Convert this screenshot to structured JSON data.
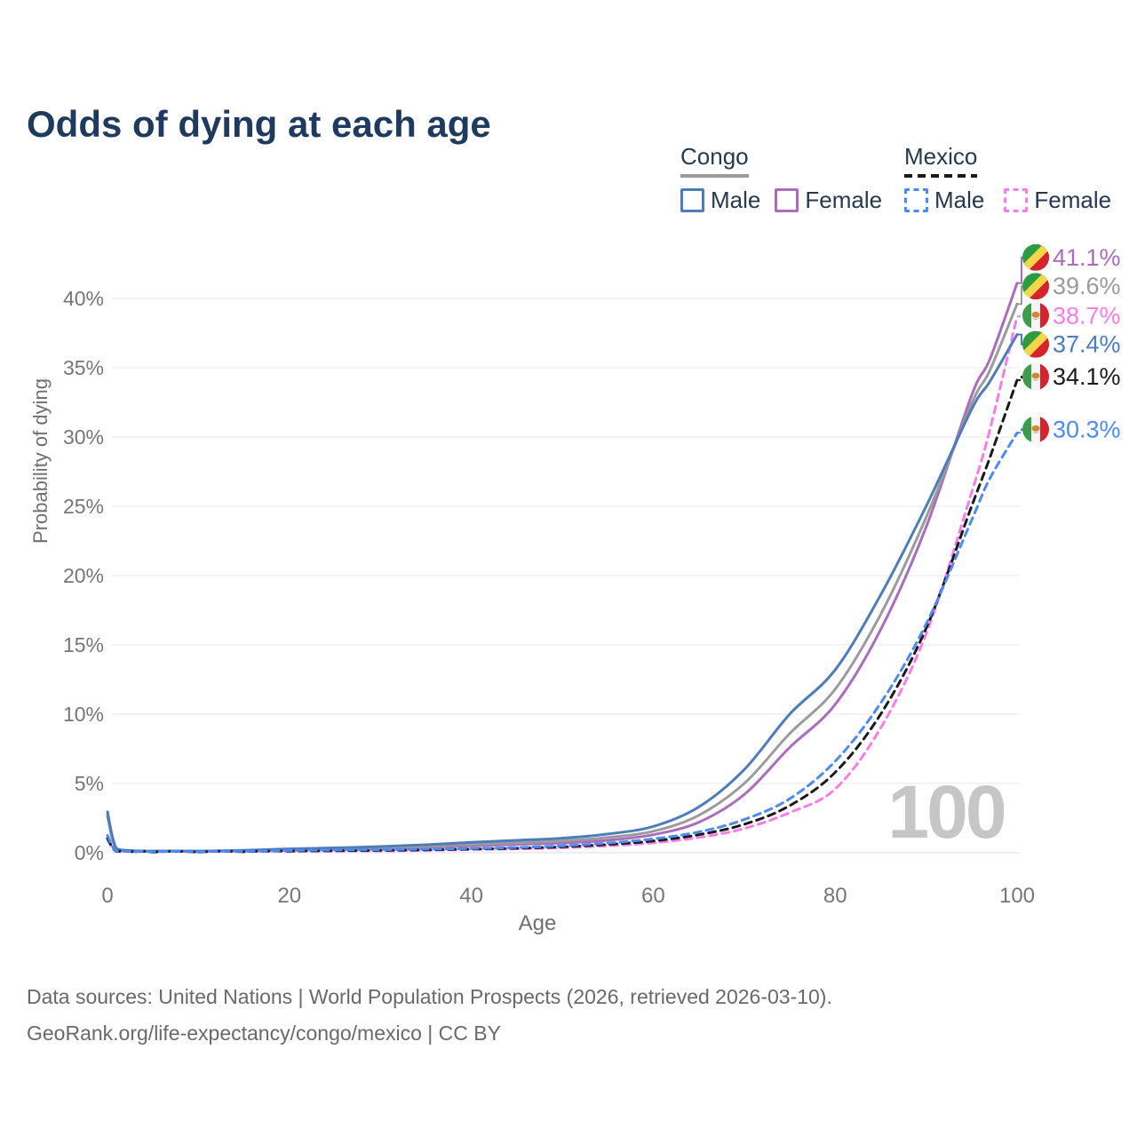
{
  "title": "Odds of dying at each age",
  "legend": {
    "groups": [
      {
        "title": "Congo",
        "line_series": "congo-both",
        "items": [
          {
            "label": "Male",
            "series": "congo-male"
          },
          {
            "label": "Female",
            "series": "congo-female"
          }
        ]
      },
      {
        "title": "Mexico",
        "line_series": "mexico-both",
        "items": [
          {
            "label": "Male",
            "series": "mexico-male"
          },
          {
            "label": "Female",
            "series": "mexico-female"
          }
        ]
      }
    ]
  },
  "chart_data": {
    "type": "line",
    "title": "Odds of dying at each age",
    "xlabel": "Age",
    "ylabel": "Probability of dying",
    "xlim": [
      0,
      100
    ],
    "ylim": [
      0,
      41.5
    ],
    "grid": "horizontal",
    "age_marker": "100",
    "x_ticks": [
      {
        "value": 0,
        "label": "0"
      },
      {
        "value": 20,
        "label": "20"
      },
      {
        "value": 40,
        "label": "40"
      },
      {
        "value": 60,
        "label": "60"
      },
      {
        "value": 80,
        "label": "80"
      },
      {
        "value": 100,
        "label": "100"
      }
    ],
    "y_ticks": [
      {
        "value": 0,
        "label": "0%"
      },
      {
        "value": 5,
        "label": "5%"
      },
      {
        "value": 10,
        "label": "10%"
      },
      {
        "value": 15,
        "label": "15%"
      },
      {
        "value": 20,
        "label": "20%"
      },
      {
        "value": 25,
        "label": "25%"
      },
      {
        "value": 30,
        "label": "30%"
      },
      {
        "value": 35,
        "label": "35%"
      },
      {
        "value": 40,
        "label": "40%"
      }
    ],
    "series": [
      {
        "id": "congo-female",
        "country": "Congo",
        "flag": "congo",
        "line": "solid",
        "color": "#ac6cbe",
        "end_label": "41.1%",
        "points": [
          [
            0,
            2.65
          ],
          [
            1,
            0.24
          ],
          [
            3,
            0.11
          ],
          [
            5,
            0.09
          ],
          [
            10,
            0.09
          ],
          [
            15,
            0.13
          ],
          [
            20,
            0.18
          ],
          [
            25,
            0.24
          ],
          [
            30,
            0.3
          ],
          [
            35,
            0.39
          ],
          [
            40,
            0.5
          ],
          [
            45,
            0.6
          ],
          [
            50,
            0.7
          ],
          [
            55,
            0.9
          ],
          [
            60,
            1.3
          ],
          [
            65,
            2.2
          ],
          [
            70,
            4.2
          ],
          [
            75,
            7.6
          ],
          [
            80,
            10.7
          ],
          [
            85,
            16.1
          ],
          [
            90,
            23.5
          ],
          [
            95,
            33.0
          ],
          [
            97,
            35.6
          ],
          [
            100,
            41.1
          ]
        ]
      },
      {
        "id": "congo-both",
        "country": "Congo",
        "flag": "congo",
        "line": "solid",
        "color": "#9b9b9b",
        "end_label": "39.6%",
        "points": [
          [
            0,
            2.8
          ],
          [
            1,
            0.27
          ],
          [
            3,
            0.13
          ],
          [
            5,
            0.1
          ],
          [
            10,
            0.1
          ],
          [
            15,
            0.15
          ],
          [
            20,
            0.23
          ],
          [
            25,
            0.3
          ],
          [
            30,
            0.37
          ],
          [
            35,
            0.47
          ],
          [
            40,
            0.6
          ],
          [
            45,
            0.72
          ],
          [
            50,
            0.85
          ],
          [
            55,
            1.1
          ],
          [
            60,
            1.55
          ],
          [
            65,
            2.7
          ],
          [
            70,
            5.0
          ],
          [
            75,
            8.6
          ],
          [
            80,
            11.8
          ],
          [
            85,
            17.2
          ],
          [
            90,
            24.2
          ],
          [
            95,
            32.4
          ],
          [
            97,
            34.8
          ],
          [
            100,
            39.6
          ]
        ]
      },
      {
        "id": "mexico-female",
        "country": "Mexico",
        "flag": "mexico",
        "line": "dashed",
        "color": "#fb7ce9",
        "end_label": "38.7%",
        "points": [
          [
            0,
            0.95
          ],
          [
            1,
            0.08
          ],
          [
            3,
            0.05
          ],
          [
            5,
            0.04
          ],
          [
            10,
            0.04
          ],
          [
            15,
            0.06
          ],
          [
            20,
            0.09
          ],
          [
            25,
            0.11
          ],
          [
            30,
            0.13
          ],
          [
            35,
            0.17
          ],
          [
            40,
            0.23
          ],
          [
            45,
            0.28
          ],
          [
            50,
            0.36
          ],
          [
            55,
            0.5
          ],
          [
            60,
            0.72
          ],
          [
            65,
            1.1
          ],
          [
            70,
            1.75
          ],
          [
            75,
            2.9
          ],
          [
            80,
            4.6
          ],
          [
            85,
            9.0
          ],
          [
            90,
            15.8
          ],
          [
            95,
            26.0
          ],
          [
            97,
            30.5
          ],
          [
            100,
            38.7
          ]
        ]
      },
      {
        "id": "congo-male",
        "country": "Congo",
        "flag": "congo",
        "line": "solid",
        "color": "#4d7cbb",
        "end_label": "37.4%",
        "points": [
          [
            0,
            2.95
          ],
          [
            1,
            0.3
          ],
          [
            3,
            0.15
          ],
          [
            5,
            0.12
          ],
          [
            10,
            0.12
          ],
          [
            15,
            0.18
          ],
          [
            20,
            0.28
          ],
          [
            25,
            0.35
          ],
          [
            30,
            0.45
          ],
          [
            35,
            0.58
          ],
          [
            40,
            0.75
          ],
          [
            45,
            0.9
          ],
          [
            50,
            1.05
          ],
          [
            55,
            1.35
          ],
          [
            60,
            1.9
          ],
          [
            65,
            3.3
          ],
          [
            70,
            6.0
          ],
          [
            75,
            10.0
          ],
          [
            80,
            13.2
          ],
          [
            85,
            18.6
          ],
          [
            90,
            25.0
          ],
          [
            95,
            32.0
          ],
          [
            97,
            34.0
          ],
          [
            100,
            37.4
          ]
        ]
      },
      {
        "id": "mexico-both",
        "country": "Mexico",
        "flag": "mexico",
        "line": "dashed",
        "color": "#1a1a1a",
        "end_label": "34.1%",
        "points": [
          [
            0,
            1.05
          ],
          [
            1,
            0.09
          ],
          [
            3,
            0.05
          ],
          [
            5,
            0.04
          ],
          [
            10,
            0.04
          ],
          [
            15,
            0.08
          ],
          [
            20,
            0.12
          ],
          [
            25,
            0.15
          ],
          [
            30,
            0.17
          ],
          [
            35,
            0.21
          ],
          [
            40,
            0.27
          ],
          [
            45,
            0.33
          ],
          [
            50,
            0.43
          ],
          [
            55,
            0.6
          ],
          [
            60,
            0.85
          ],
          [
            65,
            1.3
          ],
          [
            70,
            2.05
          ],
          [
            75,
            3.4
          ],
          [
            80,
            5.8
          ],
          [
            85,
            10.0
          ],
          [
            90,
            16.2
          ],
          [
            95,
            25.0
          ],
          [
            97,
            28.5
          ],
          [
            100,
            34.1
          ]
        ]
      },
      {
        "id": "mexico-male",
        "country": "Mexico",
        "flag": "mexico",
        "line": "dashed",
        "color": "#4b8bf2",
        "end_label": "30.3%",
        "points": [
          [
            0,
            1.25
          ],
          [
            1,
            0.1
          ],
          [
            3,
            0.06
          ],
          [
            5,
            0.05
          ],
          [
            10,
            0.05
          ],
          [
            15,
            0.1
          ],
          [
            20,
            0.16
          ],
          [
            25,
            0.2
          ],
          [
            30,
            0.22
          ],
          [
            35,
            0.26
          ],
          [
            40,
            0.3
          ],
          [
            45,
            0.38
          ],
          [
            50,
            0.5
          ],
          [
            55,
            0.7
          ],
          [
            60,
            1.0
          ],
          [
            65,
            1.5
          ],
          [
            70,
            2.4
          ],
          [
            75,
            3.9
          ],
          [
            80,
            6.6
          ],
          [
            85,
            10.8
          ],
          [
            90,
            16.5
          ],
          [
            95,
            24.0
          ],
          [
            97,
            27.0
          ],
          [
            100,
            30.3
          ]
        ]
      }
    ]
  },
  "footer": {
    "line1": "Data sources: United Nations | World Population Prospects (2026, retrieved 2026-03-10).",
    "line2": "GeoRank.org/life-expectancy/congo/mexico | CC BY"
  }
}
